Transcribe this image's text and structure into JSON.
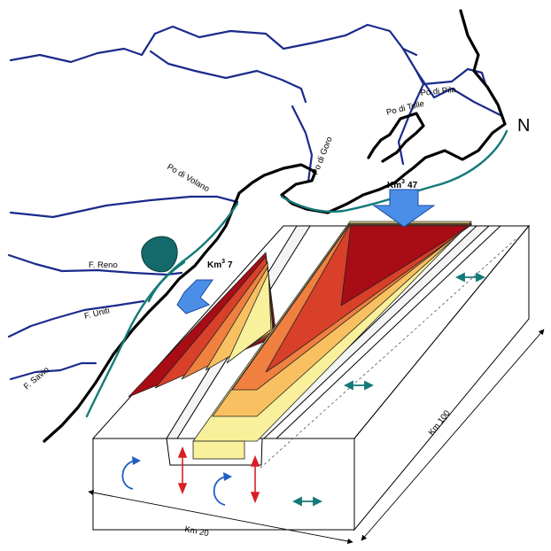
{
  "map_labels": {
    "north": "N",
    "po_di_pila": "Po di Pila",
    "po_di_tolle": "Po di Tolle",
    "po_di_goro": "Po di Goro",
    "po_di_volano": "Po di Volano",
    "f_reno": "F. Reno",
    "f_uniti": "F. Uniti",
    "f_savio": "F. Savio"
  },
  "volumes": {
    "north_unit": "Km",
    "north_exp": "3",
    "north_value": "47",
    "south_unit": "Km",
    "south_exp": "3",
    "south_value": "7"
  },
  "dimensions": {
    "length": "Km 100",
    "width": "Km 20"
  },
  "colors": {
    "river": "#1a2a8c",
    "shelf_edge": "#137a78",
    "lagoon": "#146a6a",
    "input_arrow": "#4a8ee8",
    "vertical_arrow": "#d81f26",
    "lateral_arrow": "#137a78",
    "circulation_arrow": "#1f5fc4",
    "deposit_gradient": [
      "#a80c14",
      "#d8402a",
      "#ef8040",
      "#f8c060",
      "#f8f09a"
    ]
  }
}
